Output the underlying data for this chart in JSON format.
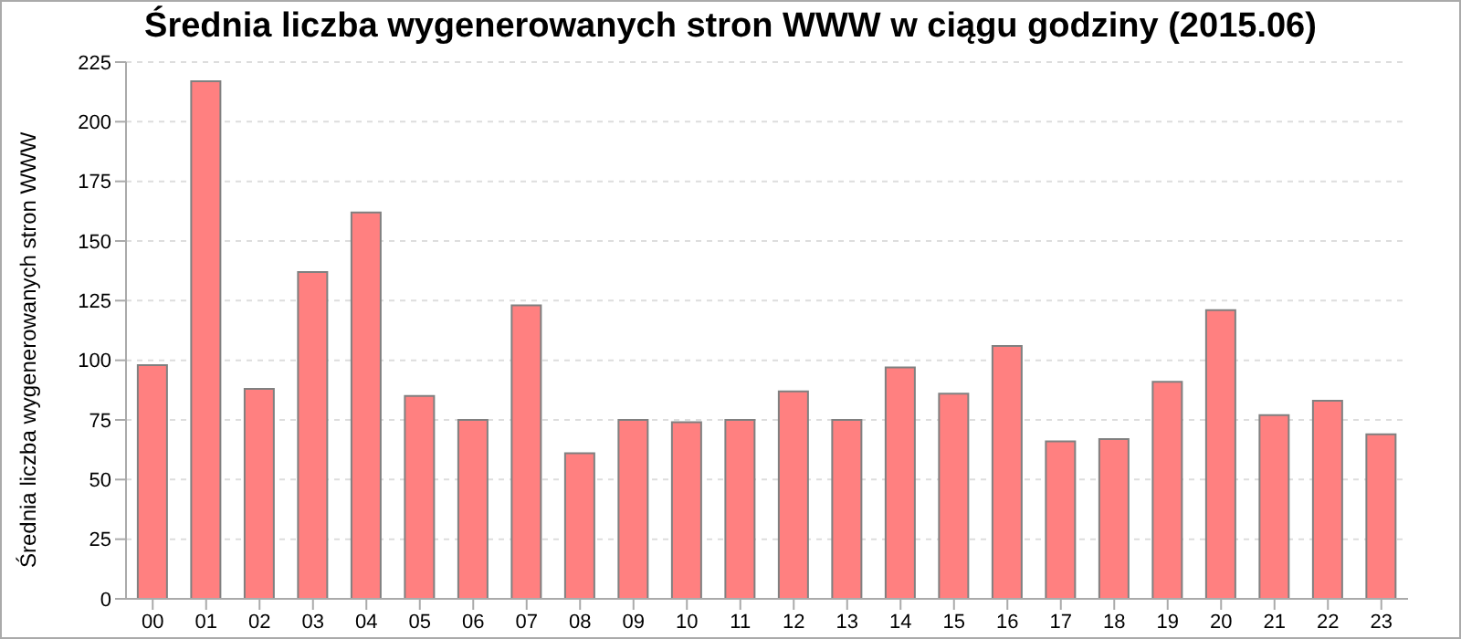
{
  "chart_data": {
    "type": "bar",
    "title": "Średnia liczba wygenerowanych stron WWW w ciągu godziny (2015.06)",
    "ylabel": "Średnia liczba wygenerowanych stron WWW",
    "categories": [
      "00",
      "01",
      "02",
      "03",
      "04",
      "05",
      "06",
      "07",
      "08",
      "09",
      "10",
      "11",
      "12",
      "13",
      "14",
      "15",
      "16",
      "17",
      "18",
      "19",
      "20",
      "21",
      "22",
      "23"
    ],
    "values": [
      98,
      217,
      88,
      137,
      162,
      85,
      75,
      123,
      61,
      75,
      74,
      75,
      87,
      75,
      97,
      86,
      106,
      66,
      67,
      91,
      121,
      77,
      83,
      69
    ],
    "color": "#ff8080",
    "ylim": [
      0,
      225
    ],
    "yticks": [
      0,
      25,
      50,
      75,
      100,
      125,
      150,
      175,
      200,
      225
    ],
    "grid": "y",
    "legend": false
  }
}
